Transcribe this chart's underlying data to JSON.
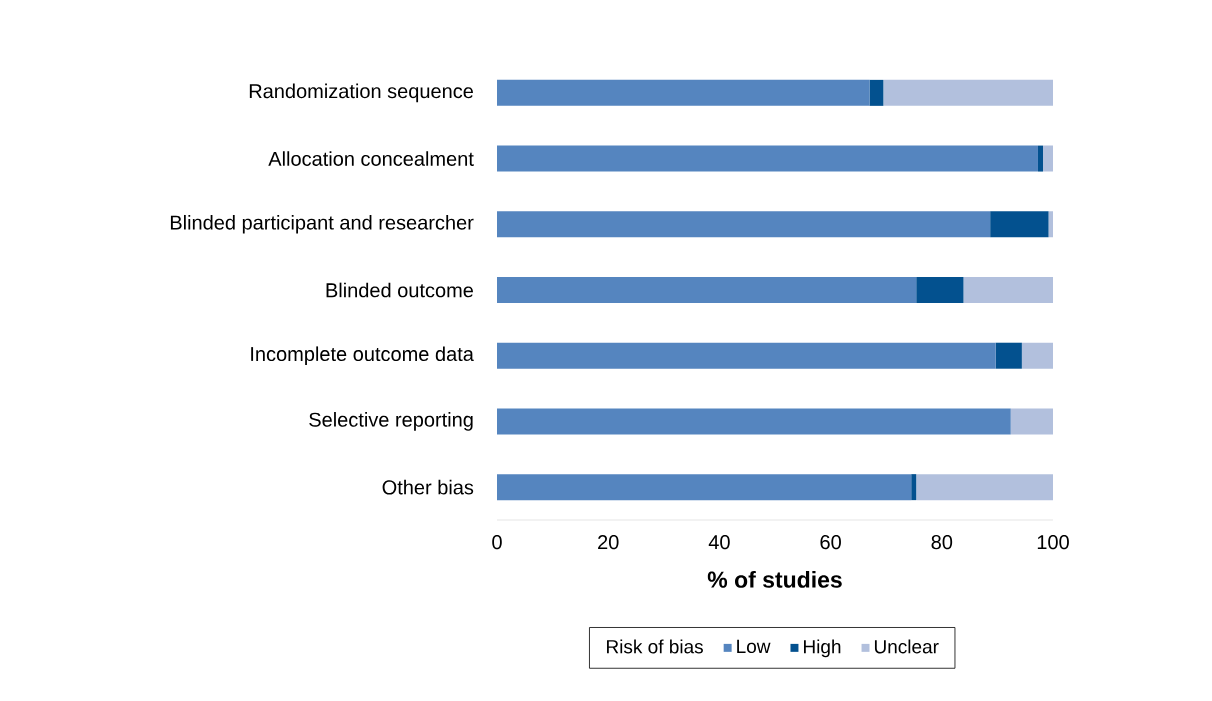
{
  "chart_data": {
    "type": "bar",
    "orientation": "horizontal",
    "stacked": true,
    "categories": [
      "Randomization sequence",
      "Allocation concealment",
      "Blinded participant and researcher",
      "Blinded outcome",
      "Incomplete outcome data",
      "Selective reporting",
      "Other bias"
    ],
    "series": [
      {
        "name": "Low",
        "color": "#5585bf",
        "values": [
          67.0,
          97.3,
          88.7,
          75.4,
          89.7,
          92.4,
          74.5
        ]
      },
      {
        "name": "High",
        "color": "#03518f",
        "values": [
          2.5,
          0.9,
          10.5,
          8.5,
          4.7,
          0.0,
          0.9
        ]
      },
      {
        "name": "Unclear",
        "color": "#b2c0dd",
        "values": [
          30.5,
          1.8,
          0.8,
          16.1,
          5.6,
          7.6,
          24.6
        ]
      }
    ],
    "xlabel": "% of studies",
    "legend_title": "Risk of bias",
    "legend": "bottom",
    "xlim": [
      0,
      100
    ],
    "xticks": [
      0,
      20,
      40,
      60,
      80,
      100
    ],
    "grid": false
  }
}
